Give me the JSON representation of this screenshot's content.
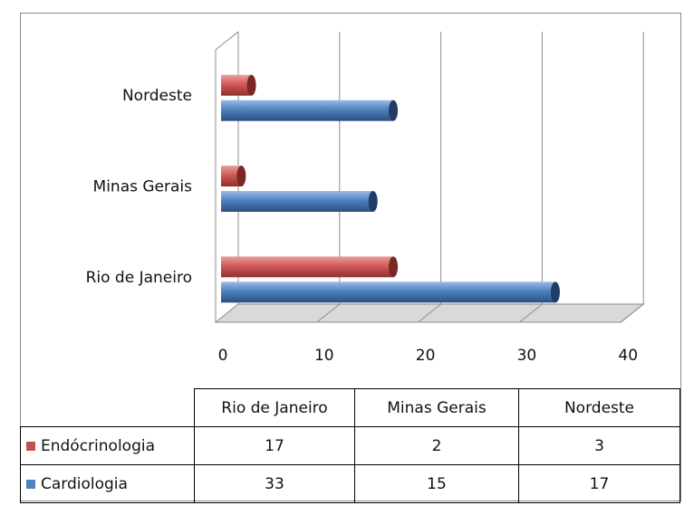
{
  "chart_data": {
    "type": "bar",
    "orientation": "horizontal",
    "style": "3d-cylinder",
    "categories": [
      "Rio de Janeiro",
      "Minas Gerais",
      "Nordeste"
    ],
    "series": [
      {
        "name": "Endócrinologia",
        "color": "#c0504d",
        "values": [
          17,
          2,
          3
        ]
      },
      {
        "name": "Cardiologia",
        "color": "#4f81bd",
        "values": [
          33,
          15,
          17
        ]
      }
    ],
    "xlim": [
      0,
      40
    ],
    "xticks": [
      "0",
      "10",
      "20",
      "30",
      "40"
    ],
    "grid": true,
    "legend": "data-table-below"
  }
}
